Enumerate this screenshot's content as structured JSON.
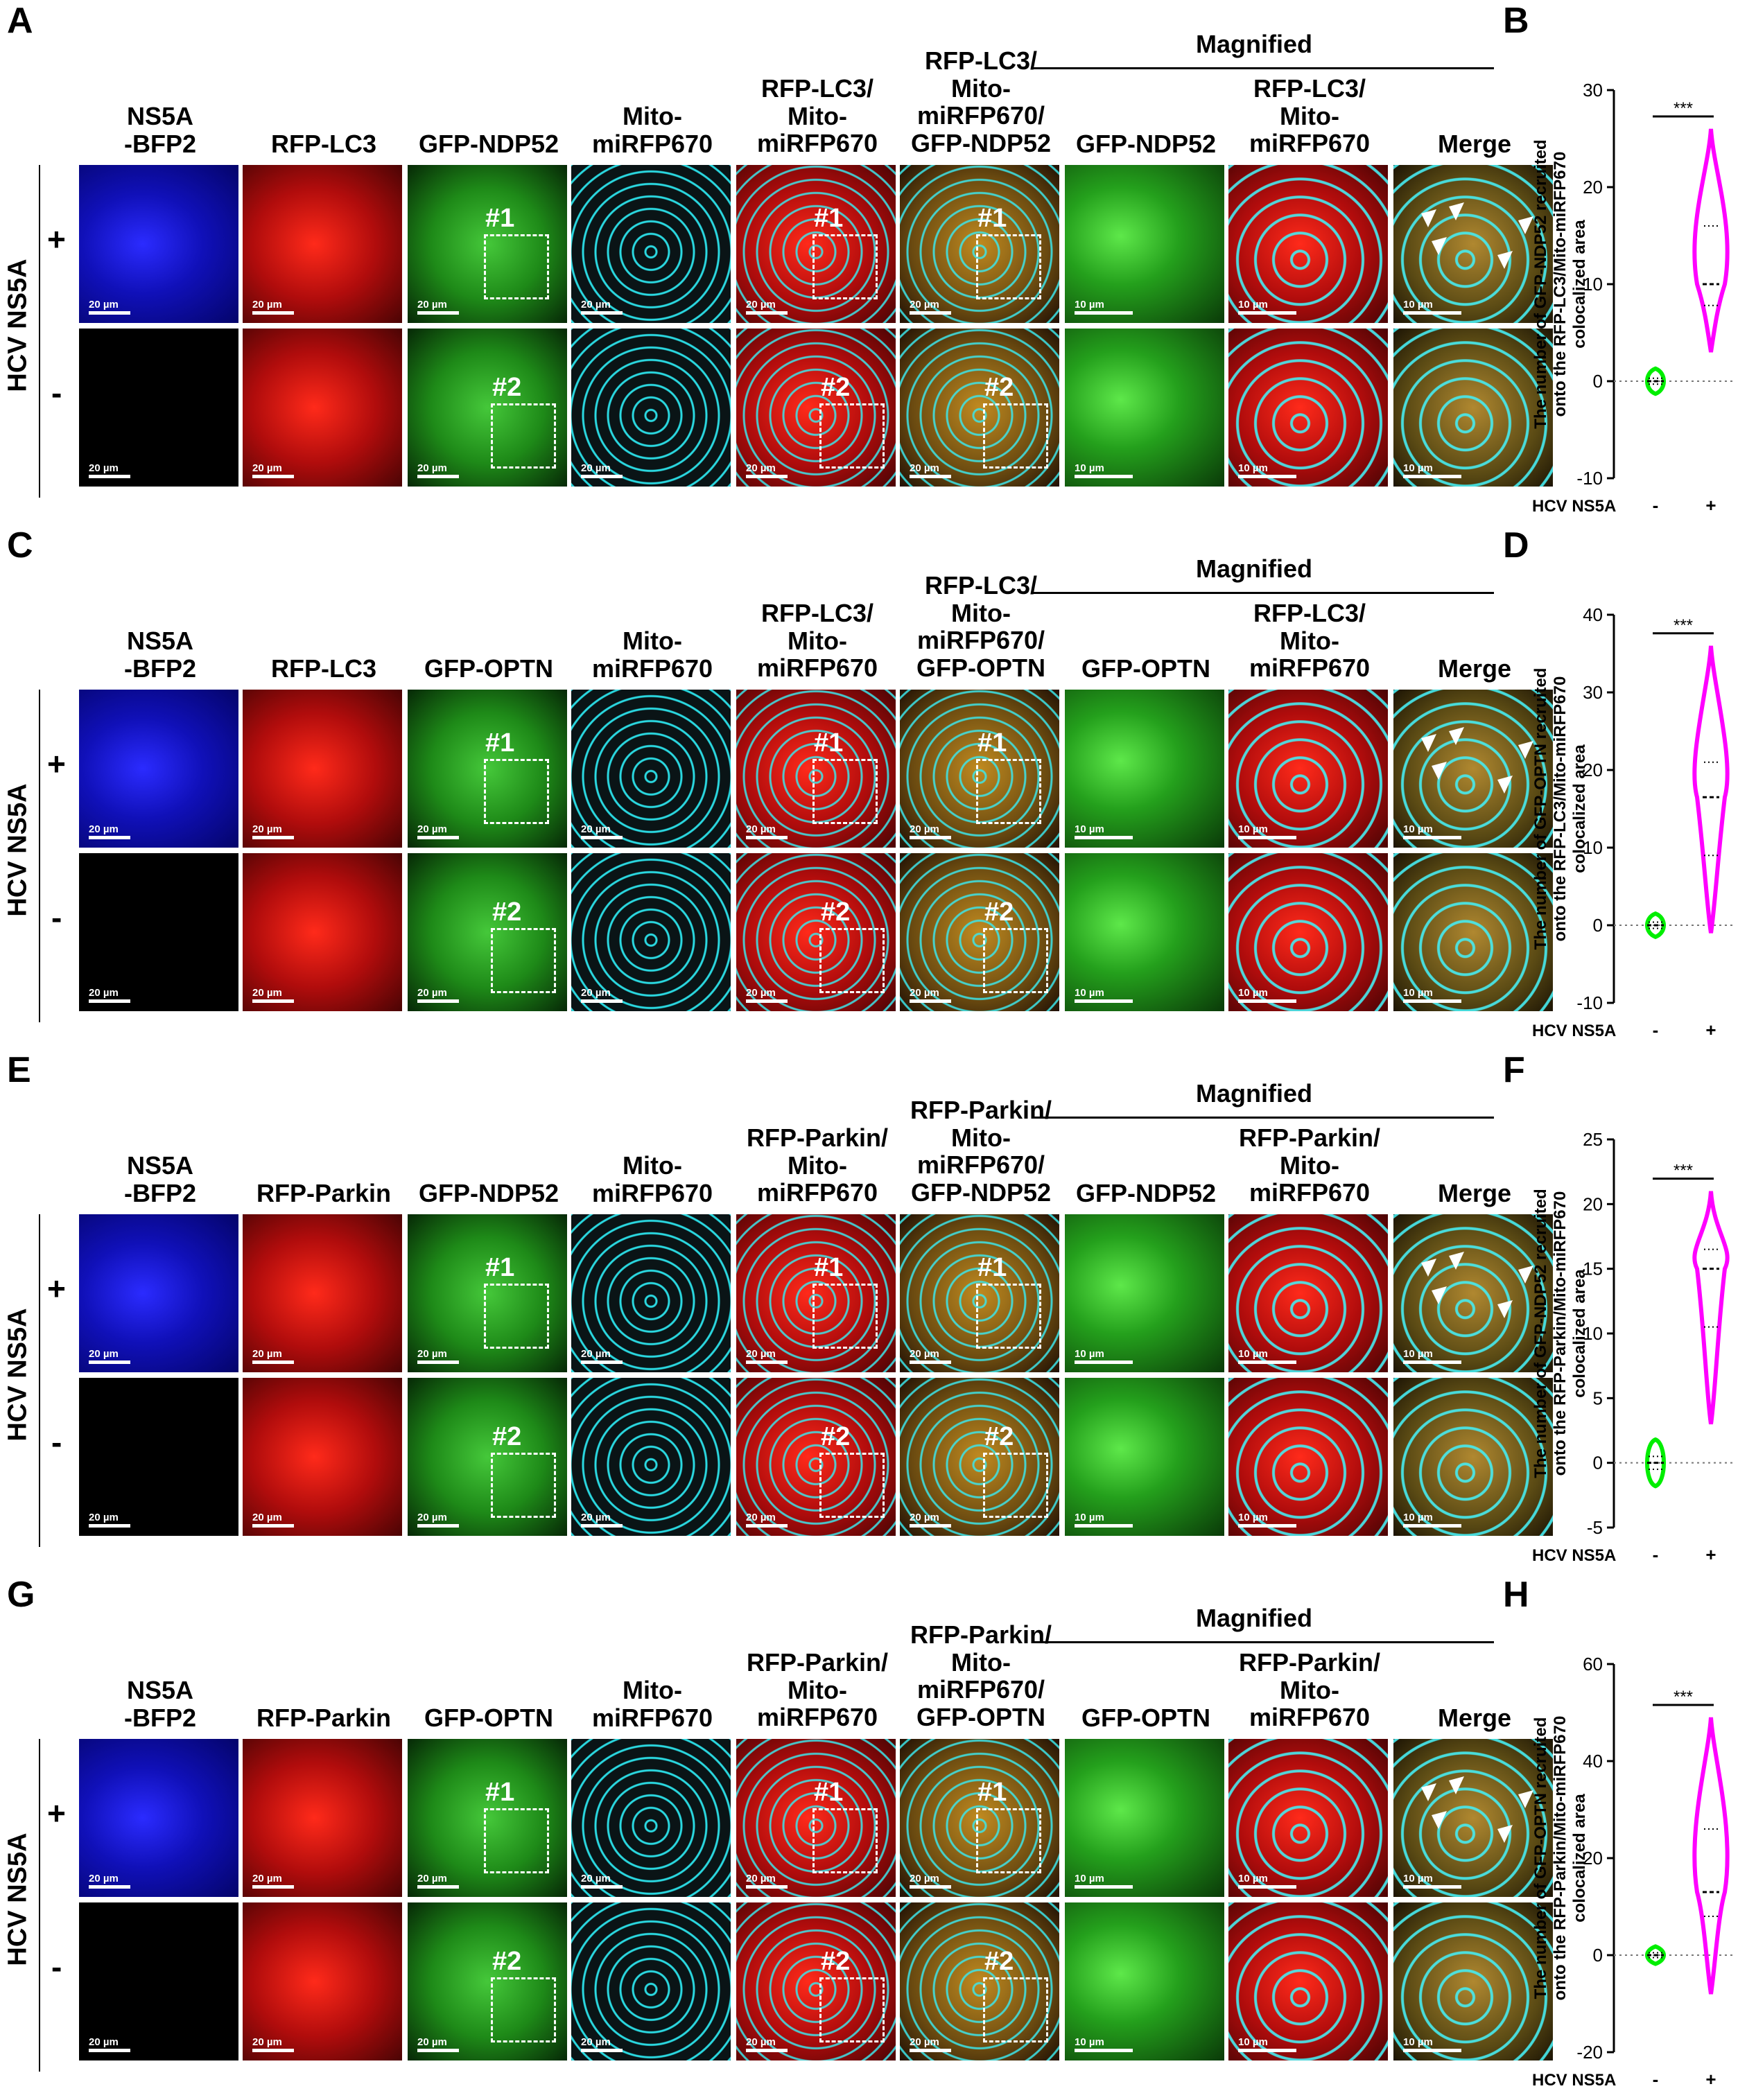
{
  "figures": [
    {
      "panel": "A",
      "chart_panel": "B",
      "top": 0,
      "columns": [
        "NS5A\n-BFP2",
        "RFP-LC3",
        "GFP-NDP52",
        "Mito-\nmiRFP670",
        "RFP-LC3/\nMito-\nmiRFP670",
        "RFP-LC3/\nMito-\nmiRFP670/\nGFP-NDP52",
        "GFP-NDP52",
        "RFP-LC3/\nMito-\nmiRFP670",
        "Merge"
      ],
      "marker": "ndp52",
      "red": "lc3"
    },
    {
      "panel": "C",
      "chart_panel": "D",
      "top": 757,
      "columns": [
        "NS5A\n-BFP2",
        "RFP-LC3",
        "GFP-OPTN",
        "Mito-\nmiRFP670",
        "RFP-LC3/\nMito-\nmiRFP670",
        "RFP-LC3/\nMito-\nmiRFP670/\nGFP-OPTN",
        "GFP-OPTN",
        "RFP-LC3/\nMito-\nmiRFP670",
        "Merge"
      ],
      "marker": "optn",
      "red": "lc3"
    },
    {
      "panel": "E",
      "chart_panel": "F",
      "top": 1514,
      "columns": [
        "NS5A\n-BFP2",
        "RFP-Parkin",
        "GFP-NDP52",
        "Mito-\nmiRFP670",
        "RFP-Parkin/\nMito-\nmiRFP670",
        "RFP-Parkin/\nMito-\nmiRFP670/\nGFP-NDP52",
        "GFP-NDP52",
        "RFP-Parkin/\nMito-\nmiRFP670",
        "Merge"
      ],
      "marker": "ndp52",
      "red": "parkin"
    },
    {
      "panel": "G",
      "chart_panel": "H",
      "top": 2271,
      "columns": [
        "NS5A\n-BFP2",
        "RFP-Parkin",
        "GFP-OPTN",
        "Mito-\nmiRFP670",
        "RFP-Parkin/\nMito-\nmiRFP670",
        "RFP-Parkin/\nMito-\nmiRFP670/\nGFP-OPTN",
        "GFP-OPTN",
        "RFP-Parkin/\nMito-\nmiRFP670",
        "Merge"
      ],
      "marker": "optn",
      "red": "parkin"
    }
  ],
  "common": {
    "magnified": "Magnified",
    "row_label": "HCV NS5A",
    "plus": "+",
    "minus": "-",
    "scale_20": "20 µm",
    "scale_10": "10 µm",
    "roi1": "#1",
    "roi2": "#2",
    "sig": "***",
    "x_axis_title": "HCV NS5A",
    "x_ticks": [
      "-",
      "+"
    ]
  },
  "colors": {
    "blue": "#1010d0",
    "red": "#c81010",
    "green": "#2aa81c",
    "cyan": "#28d8e0",
    "neg_series": "#00ee00",
    "pos_series": "#ff00ff"
  },
  "chart_data": [
    {
      "type": "violin",
      "ylabel": "The number of GFP-NDP52 recruited\nonto the RFP-LC3/Mito-miRFP670\ncolocalized area",
      "ylim": [
        -10,
        30
      ],
      "yticks": [
        -10,
        0,
        10,
        20,
        30
      ],
      "categories": [
        "-",
        "+"
      ],
      "series": [
        {
          "category": "-",
          "min": -1.3,
          "max": 1.3,
          "median": 0,
          "q1": -0.3,
          "q3": 0.3
        },
        {
          "category": "+",
          "min": 3,
          "max": 26,
          "median": 10,
          "q1": 7.8,
          "q3": 16
        }
      ],
      "significance": "***"
    },
    {
      "type": "violin",
      "ylabel": "The number of GFP-OPTN recruited\nonto the RFP-LC3/Mito-miRFP670\ncolocalized area",
      "ylim": [
        -10,
        40
      ],
      "yticks": [
        -10,
        0,
        10,
        20,
        30,
        40
      ],
      "categories": [
        "-",
        "+"
      ],
      "series": [
        {
          "category": "-",
          "min": -1.5,
          "max": 1.5,
          "median": 0,
          "q1": -0.4,
          "q3": 0.4
        },
        {
          "category": "+",
          "min": -1,
          "max": 36,
          "median": 16.5,
          "q1": 9,
          "q3": 21
        }
      ],
      "significance": "***"
    },
    {
      "type": "violin",
      "ylabel": "The number of GFP-NDP52 recruited\nonto the RFP-Parkin/Mito-miRFP670\ncolocalized area",
      "ylim": [
        -5,
        25
      ],
      "yticks": [
        -5,
        0,
        5,
        10,
        15,
        20,
        25
      ],
      "categories": [
        "-",
        "+"
      ],
      "series": [
        {
          "category": "-",
          "min": -1.8,
          "max": 1.8,
          "median": 0,
          "q1": -0.5,
          "q3": 0.5
        },
        {
          "category": "+",
          "min": 3,
          "max": 21,
          "median": 15,
          "q1": 10.5,
          "q3": 16.5
        }
      ],
      "significance": "***"
    },
    {
      "type": "violin",
      "ylabel": "The number of GFP-OPTN recruited\nonto the RFP-Parkin/Mito-miRFP670\ncolocalized area",
      "ylim": [
        -20,
        60
      ],
      "yticks": [
        -20,
        0,
        20,
        40,
        60
      ],
      "categories": [
        "-",
        "+"
      ],
      "series": [
        {
          "category": "-",
          "min": -1.8,
          "max": 1.8,
          "median": 0,
          "q1": -0.5,
          "q3": 0.5
        },
        {
          "category": "+",
          "min": -8,
          "max": 49,
          "median": 13,
          "q1": 8,
          "q3": 26
        }
      ],
      "significance": "***"
    }
  ]
}
